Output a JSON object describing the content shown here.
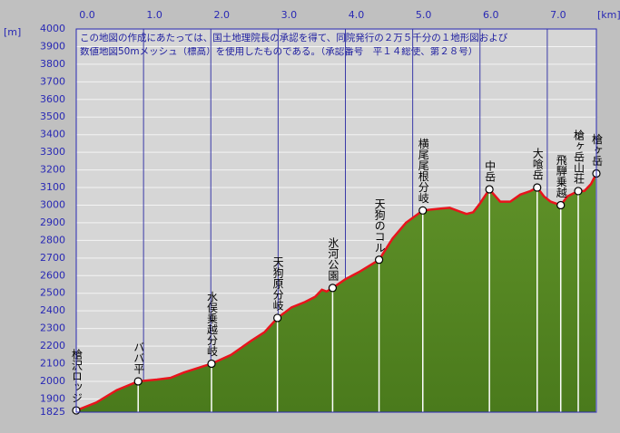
{
  "chart_data": {
    "type": "area",
    "x_label": "[km]",
    "y_label": "[m]",
    "annotations": [
      "この地図の作成にあたっては、国土地理院長の承認を得て、同院発行の２万５千分の１地形図および",
      "数値地図50mメッシュ（標高）を使用したものである。（承認番号　平１４総使、第２８号）"
    ],
    "xlim": [
      0,
      7.73
    ],
    "ylim": [
      1825,
      4000
    ],
    "xticks": [
      {
        "value": 0,
        "label": "0.0"
      },
      {
        "value": 1,
        "label": "1.0"
      },
      {
        "value": 2,
        "label": "2.0"
      },
      {
        "value": 3,
        "label": "3.0"
      },
      {
        "value": 4,
        "label": "4.0"
      },
      {
        "value": 5,
        "label": "5.0"
      },
      {
        "value": 6,
        "label": "6.0"
      },
      {
        "value": 7,
        "label": "7.0"
      }
    ],
    "yticks": [
      1825,
      1900,
      2000,
      2100,
      2200,
      2300,
      2400,
      2500,
      2600,
      2700,
      2800,
      2900,
      3000,
      3100,
      3200,
      3300,
      3400,
      3500,
      3600,
      3700,
      3800,
      3900,
      4000
    ],
    "grid": true,
    "color": "#e8141c",
    "fill": "#5f9128",
    "x": [
      0,
      0.3,
      0.6,
      0.92,
      1.2,
      1.4,
      1.6,
      1.8,
      2.01,
      2.3,
      2.6,
      2.8,
      2.99,
      3.2,
      3.4,
      3.55,
      3.65,
      3.72,
      3.81,
      4.0,
      4.2,
      4.5,
      4.7,
      4.9,
      5.15,
      5.4,
      5.55,
      5.8,
      5.9,
      6.0,
      6.14,
      6.3,
      6.45,
      6.6,
      6.75,
      6.85,
      6.95,
      7.05,
      7.2,
      7.3,
      7.46,
      7.55,
      7.65,
      7.73
    ],
    "values": [
      1835,
      1880,
      1950,
      2000,
      2010,
      2020,
      2050,
      2075,
      2100,
      2150,
      2230,
      2280,
      2360,
      2420,
      2450,
      2480,
      2520,
      2510,
      2530,
      2580,
      2620,
      2690,
      2810,
      2900,
      2970,
      2980,
      2985,
      2950,
      2960,
      3010,
      3090,
      3020,
      3020,
      3060,
      3080,
      3100,
      3050,
      3020,
      3000,
      3050,
      3080,
      3080,
      3120,
      3180
    ],
    "waypoints": {
      "names": [
        "槍沢ロッジ",
        "ババ平",
        "水俣乗越分岐",
        "天狗原分岐",
        "氷河公園",
        "天狗のコル",
        "横尾尾根分岐",
        "中岳",
        "大喰岳",
        "飛騨乗越",
        "槍ヶ岳山荘",
        "槍ヶ岳"
      ],
      "x": [
        0,
        0.92,
        2.01,
        2.99,
        3.81,
        4.5,
        5.15,
        6.14,
        6.85,
        7.2,
        7.46,
        7.73
      ],
      "values": [
        1835,
        2000,
        2100,
        2360,
        2530,
        2690,
        2970,
        3090,
        3100,
        3000,
        3080,
        3180
      ]
    }
  }
}
